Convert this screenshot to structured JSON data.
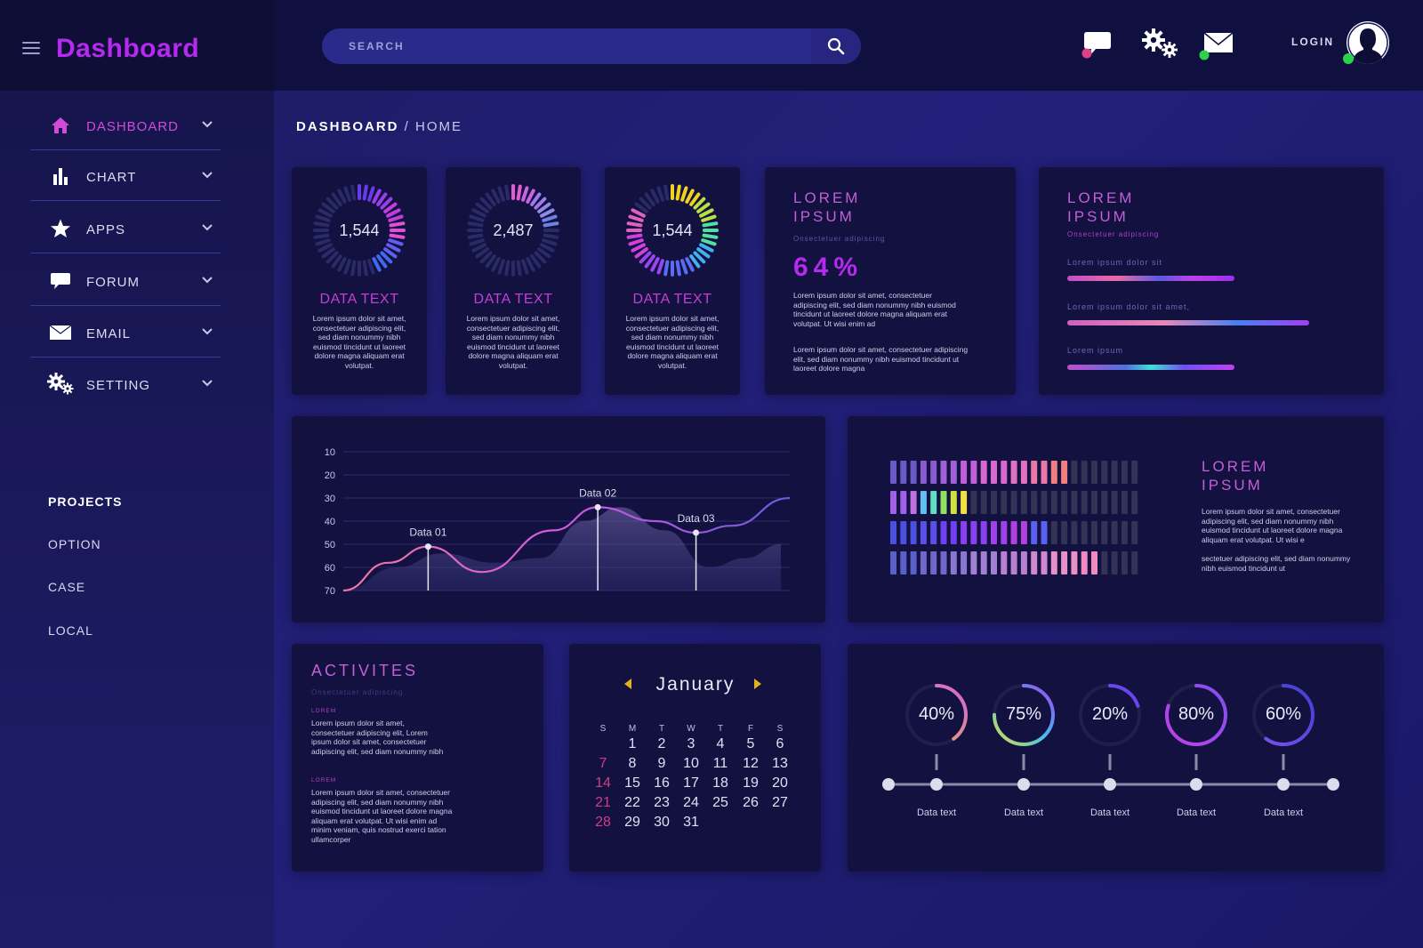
{
  "app": {
    "title": "Dashboard"
  },
  "nav": [
    {
      "label": "DASHBOARD",
      "icon": "home-icon",
      "active": true
    },
    {
      "label": "CHART",
      "icon": "bar-chart-icon",
      "active": false
    },
    {
      "label": "APPS",
      "icon": "star-icon",
      "active": false
    },
    {
      "label": "FORUM",
      "icon": "chat-bubble-icon",
      "active": false
    },
    {
      "label": "EMAIL",
      "icon": "envelope-icon",
      "active": false
    },
    {
      "label": "SETTING",
      "icon": "gears-icon",
      "active": false
    }
  ],
  "projects": {
    "title": "PROJECTS",
    "items": [
      "OPTION",
      "CASE",
      "LOCAL"
    ]
  },
  "header": {
    "search_placeholder": "SEARCH",
    "login_label": "LOGIN"
  },
  "breadcrumb": {
    "first": "DASHBOARD",
    "sep": "/",
    "second": "HOME"
  },
  "stat_cards": [
    {
      "value": "1,544",
      "fill": 0.45,
      "title": "DATA TEXT",
      "text": "Lorem ipsum dolor sit amet, consectetuer adipiscing elit, sed diam nonummy nibh euismod tincidunt ut laoreet dolore magna aliquam erat volutpat."
    },
    {
      "value": "2,487",
      "fill": 0.25,
      "title": "DATA TEXT",
      "text": "Lorem ipsum dolor sit amet, consectetuer adipiscing elit, sed diam nonummy nibh euismod tincidunt ut laoreet dolore magna aliquam erat volutpat."
    },
    {
      "value": "1,544",
      "fill": 0.85,
      "title": "DATA TEXT",
      "text": "Lorem ipsum dolor sit amet, consectetuer adipiscing elit, sed diam nonummy nibh euismod tincidunt ut laoreet dolore magna aliquam erat volutpat."
    }
  ],
  "percent_card": {
    "title_line1": "LOREM",
    "title_line2": "IPSUM",
    "subtitle": "Onsectetuer adipiscing",
    "value": "64%",
    "text1": "Lorem ipsum dolor sit amet, consectetuer adipiscing elit, sed diam nonummy nibh euismod tincidunt ut laoreet dolore magna aliquam erat volutpat. Ut wisi enim ad",
    "text2": "Lorem ipsum dolor sit amet, consectetuer adipiscing elit, sed diam nonummy nibh euismod tincidunt ut laoreet dolore magna"
  },
  "bars_card": {
    "title_line1": "LOREM",
    "title_line2": "IPSUM",
    "subtitle": "Onsectetuer adipiscing",
    "bars": [
      {
        "label": "Lorem ipsum dolor sit",
        "value": 0.69
      },
      {
        "label": "Lorem ipsum dolor sit amet,",
        "value": 1.0
      },
      {
        "label": "Lorem ipsum",
        "value": 0.69
      }
    ]
  },
  "chart_data": {
    "type": "area",
    "y_ticks": [
      "10",
      "20",
      "30",
      "40",
      "50",
      "60",
      "70"
    ],
    "annotations": [
      "Data 01",
      "Data 02",
      "Data 03"
    ],
    "series": [
      {
        "kind": "line",
        "points": [
          [
            0,
            70
          ],
          [
            10,
            58
          ],
          [
            19,
            51
          ],
          [
            31,
            62
          ],
          [
            47,
            44
          ],
          [
            57,
            34
          ],
          [
            70,
            40
          ],
          [
            79,
            45
          ],
          [
            87,
            42
          ],
          [
            100,
            30
          ]
        ]
      },
      {
        "kind": "area",
        "points": [
          [
            0,
            70
          ],
          [
            12,
            60
          ],
          [
            22,
            54
          ],
          [
            34,
            58
          ],
          [
            44,
            56
          ],
          [
            54,
            40
          ],
          [
            62,
            34
          ],
          [
            72,
            44
          ],
          [
            82,
            60
          ],
          [
            90,
            56
          ],
          [
            98,
            50
          ],
          [
            98,
            70
          ]
        ]
      }
    ],
    "markers": [
      {
        "label": "Data 01",
        "x": 19,
        "y": 51
      },
      {
        "label": "Data 02",
        "x": 57,
        "y": 34
      },
      {
        "label": "Data 03",
        "x": 79,
        "y": 45
      }
    ]
  },
  "eq_card": {
    "title_line1": "LOREM",
    "title_line2": "IPSUM",
    "text1": "Lorem ipsum dolor sit amet, consectetuer adipiscing elit, sed diam nonummy nibh euismod tincidunt ut laoreet dolore magna aliquam erat volutpat. Ut wisi e",
    "text2": "sectetuer adipiscing elit, sed diam nonummy nibh euismod tincidunt ut",
    "rows": [
      {
        "lit": 18,
        "palette": "pink"
      },
      {
        "lit": 8,
        "palette": "rainbow"
      },
      {
        "lit": 16,
        "palette": "violet"
      },
      {
        "lit": 21,
        "palette": "lavender"
      }
    ],
    "total": 25
  },
  "activities": {
    "title": "ACTIVITES",
    "subtitle": "Onsectetuer adipiscing",
    "items": [
      {
        "tag": "LOREM",
        "text": "Lorem ipsum dolor sit amet, consectetuer adipiscing elit, Lorem ipsum dolor sit amet, consectetuer adipiscing elit, sed diam nonummy nibh"
      },
      {
        "tag": "LOREM",
        "text": "Lorem ipsum dolor sit amet, consectetuer adipiscing elit, sed diam nonummy nibh euismod tincidunt ut laoreet dolore magna aliquam erat volutpat. Ut wisi enim ad minim veniam, quis nostrud exerci tation ullamcorper"
      }
    ]
  },
  "calendar": {
    "month": "January",
    "weekdays": [
      "S",
      "M",
      "T",
      "W",
      "T",
      "F",
      "S"
    ],
    "first_weekday": 1,
    "days": 31
  },
  "progress": [
    {
      "value": 0.4,
      "label": "40%",
      "caption": "Data text"
    },
    {
      "value": 0.75,
      "label": "75%",
      "caption": "Data text"
    },
    {
      "value": 0.2,
      "label": "20%",
      "caption": "Data text"
    },
    {
      "value": 0.8,
      "label": "80%",
      "caption": "Data text"
    },
    {
      "value": 0.6,
      "label": "60%",
      "caption": "Data text"
    }
  ],
  "colors": {
    "accent": "#b629f0",
    "pink": "#d14bd8",
    "card": "#121140",
    "online": "#2bd34a",
    "alert": "#e0408a"
  }
}
